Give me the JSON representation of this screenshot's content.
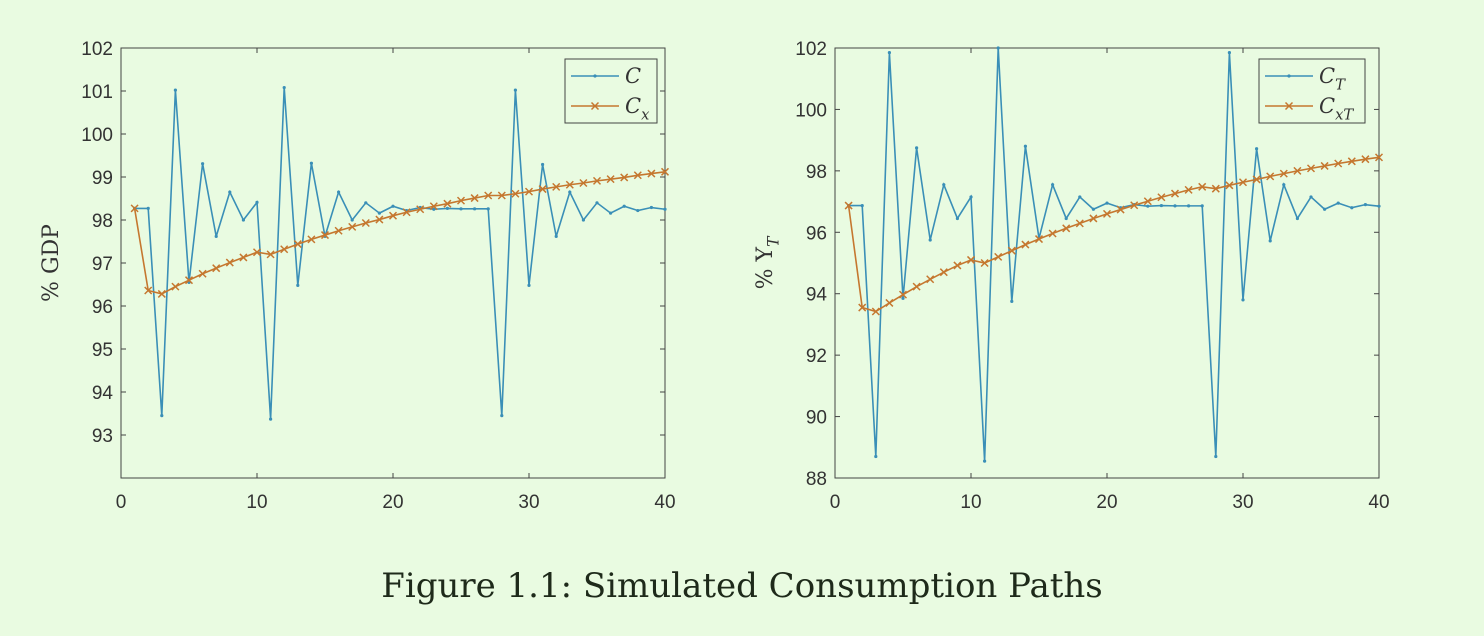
{
  "caption": "Figure 1.1: Simulated Consumption Paths",
  "colors": {
    "series1": "#3a8fb7",
    "series2": "#c5772f",
    "axis": "#333333",
    "background": "#e9fbe1"
  },
  "chart_data": [
    {
      "type": "line",
      "ylabel": "% GDP",
      "xlim": [
        0,
        40
      ],
      "ylim": [
        92,
        102
      ],
      "xticks": [
        "0",
        "10",
        "20",
        "30",
        "40"
      ],
      "yticks": [
        "93",
        "94",
        "95",
        "96",
        "97",
        "98",
        "99",
        "100",
        "101",
        "102"
      ],
      "grid": false,
      "legend": "top-right",
      "series": [
        {
          "name": "C",
          "marker": "dot",
          "x": [
            1,
            2,
            3,
            4,
            5,
            6,
            7,
            8,
            9,
            10,
            11,
            12,
            13,
            14,
            15,
            16,
            17,
            18,
            19,
            20,
            21,
            22,
            23,
            24,
            25,
            26,
            27,
            28,
            29,
            30,
            31,
            32,
            33,
            34,
            35,
            36,
            37,
            38,
            39,
            40
          ],
          "values": [
            98.27,
            98.27,
            93.45,
            101.02,
            96.55,
            99.31,
            97.62,
            98.65,
            98.0,
            98.41,
            93.37,
            101.08,
            96.48,
            99.32,
            97.62,
            98.65,
            98.0,
            98.4,
            98.16,
            98.32,
            98.22,
            98.29,
            98.25,
            98.27,
            98.26,
            98.26,
            98.26,
            93.45,
            101.02,
            96.48,
            99.29,
            97.62,
            98.65,
            98.0,
            98.4,
            98.16,
            98.32,
            98.22,
            98.29,
            98.25
          ]
        },
        {
          "name": "C_x",
          "marker": "x",
          "x": [
            1,
            2,
            3,
            4,
            5,
            6,
            7,
            8,
            9,
            10,
            11,
            12,
            13,
            14,
            15,
            16,
            17,
            18,
            19,
            20,
            21,
            22,
            23,
            24,
            25,
            26,
            27,
            28,
            29,
            30,
            31,
            32,
            33,
            34,
            35,
            36,
            37,
            38,
            39,
            40
          ],
          "values": [
            98.27,
            96.36,
            96.28,
            96.45,
            96.6,
            96.75,
            96.88,
            97.01,
            97.13,
            97.25,
            97.2,
            97.32,
            97.44,
            97.55,
            97.65,
            97.75,
            97.84,
            97.93,
            98.01,
            98.1,
            98.18,
            98.25,
            98.32,
            98.38,
            98.45,
            98.51,
            98.57,
            98.57,
            98.61,
            98.66,
            98.72,
            98.77,
            98.82,
            98.86,
            98.91,
            98.95,
            98.99,
            99.04,
            99.08,
            99.12
          ]
        }
      ]
    },
    {
      "type": "line",
      "ylabel": "% Y_T",
      "xlim": [
        0,
        40
      ],
      "ylim": [
        88,
        102
      ],
      "xticks": [
        "0",
        "10",
        "20",
        "30",
        "40"
      ],
      "yticks": [
        "88",
        "90",
        "92",
        "94",
        "96",
        "98",
        "100",
        "102"
      ],
      "grid": false,
      "legend": "top-right",
      "series": [
        {
          "name": "C_T",
          "marker": "dot",
          "x": [
            1,
            2,
            3,
            4,
            5,
            6,
            7,
            8,
            9,
            10,
            11,
            12,
            13,
            14,
            15,
            16,
            17,
            18,
            19,
            20,
            21,
            22,
            23,
            24,
            25,
            26,
            27,
            28,
            29,
            30,
            31,
            32,
            33,
            34,
            35,
            36,
            37,
            38,
            39,
            40
          ],
          "values": [
            96.87,
            96.87,
            88.7,
            101.85,
            93.85,
            98.75,
            95.75,
            97.55,
            96.45,
            97.15,
            88.55,
            102.0,
            93.75,
            98.8,
            95.8,
            97.55,
            96.45,
            97.15,
            96.75,
            96.95,
            96.8,
            96.9,
            96.85,
            96.87,
            96.86,
            96.86,
            96.86,
            88.7,
            101.85,
            93.8,
            98.72,
            95.72,
            97.55,
            96.45,
            97.15,
            96.75,
            96.95,
            96.8,
            96.9,
            96.85
          ]
        },
        {
          "name": "C_xT",
          "marker": "x",
          "x": [
            1,
            2,
            3,
            4,
            5,
            6,
            7,
            8,
            9,
            10,
            11,
            12,
            13,
            14,
            15,
            16,
            17,
            18,
            19,
            20,
            21,
            22,
            23,
            24,
            25,
            26,
            27,
            28,
            29,
            30,
            31,
            32,
            33,
            34,
            35,
            36,
            37,
            38,
            39,
            40
          ],
          "values": [
            96.87,
            93.55,
            93.42,
            93.7,
            93.97,
            94.23,
            94.47,
            94.7,
            94.92,
            95.1,
            95.0,
            95.2,
            95.4,
            95.6,
            95.78,
            95.96,
            96.13,
            96.29,
            96.45,
            96.6,
            96.74,
            96.88,
            97.01,
            97.14,
            97.26,
            97.38,
            97.48,
            97.42,
            97.53,
            97.63,
            97.72,
            97.82,
            97.91,
            98.0,
            98.08,
            98.16,
            98.24,
            98.31,
            98.38,
            98.44
          ]
        }
      ]
    }
  ]
}
